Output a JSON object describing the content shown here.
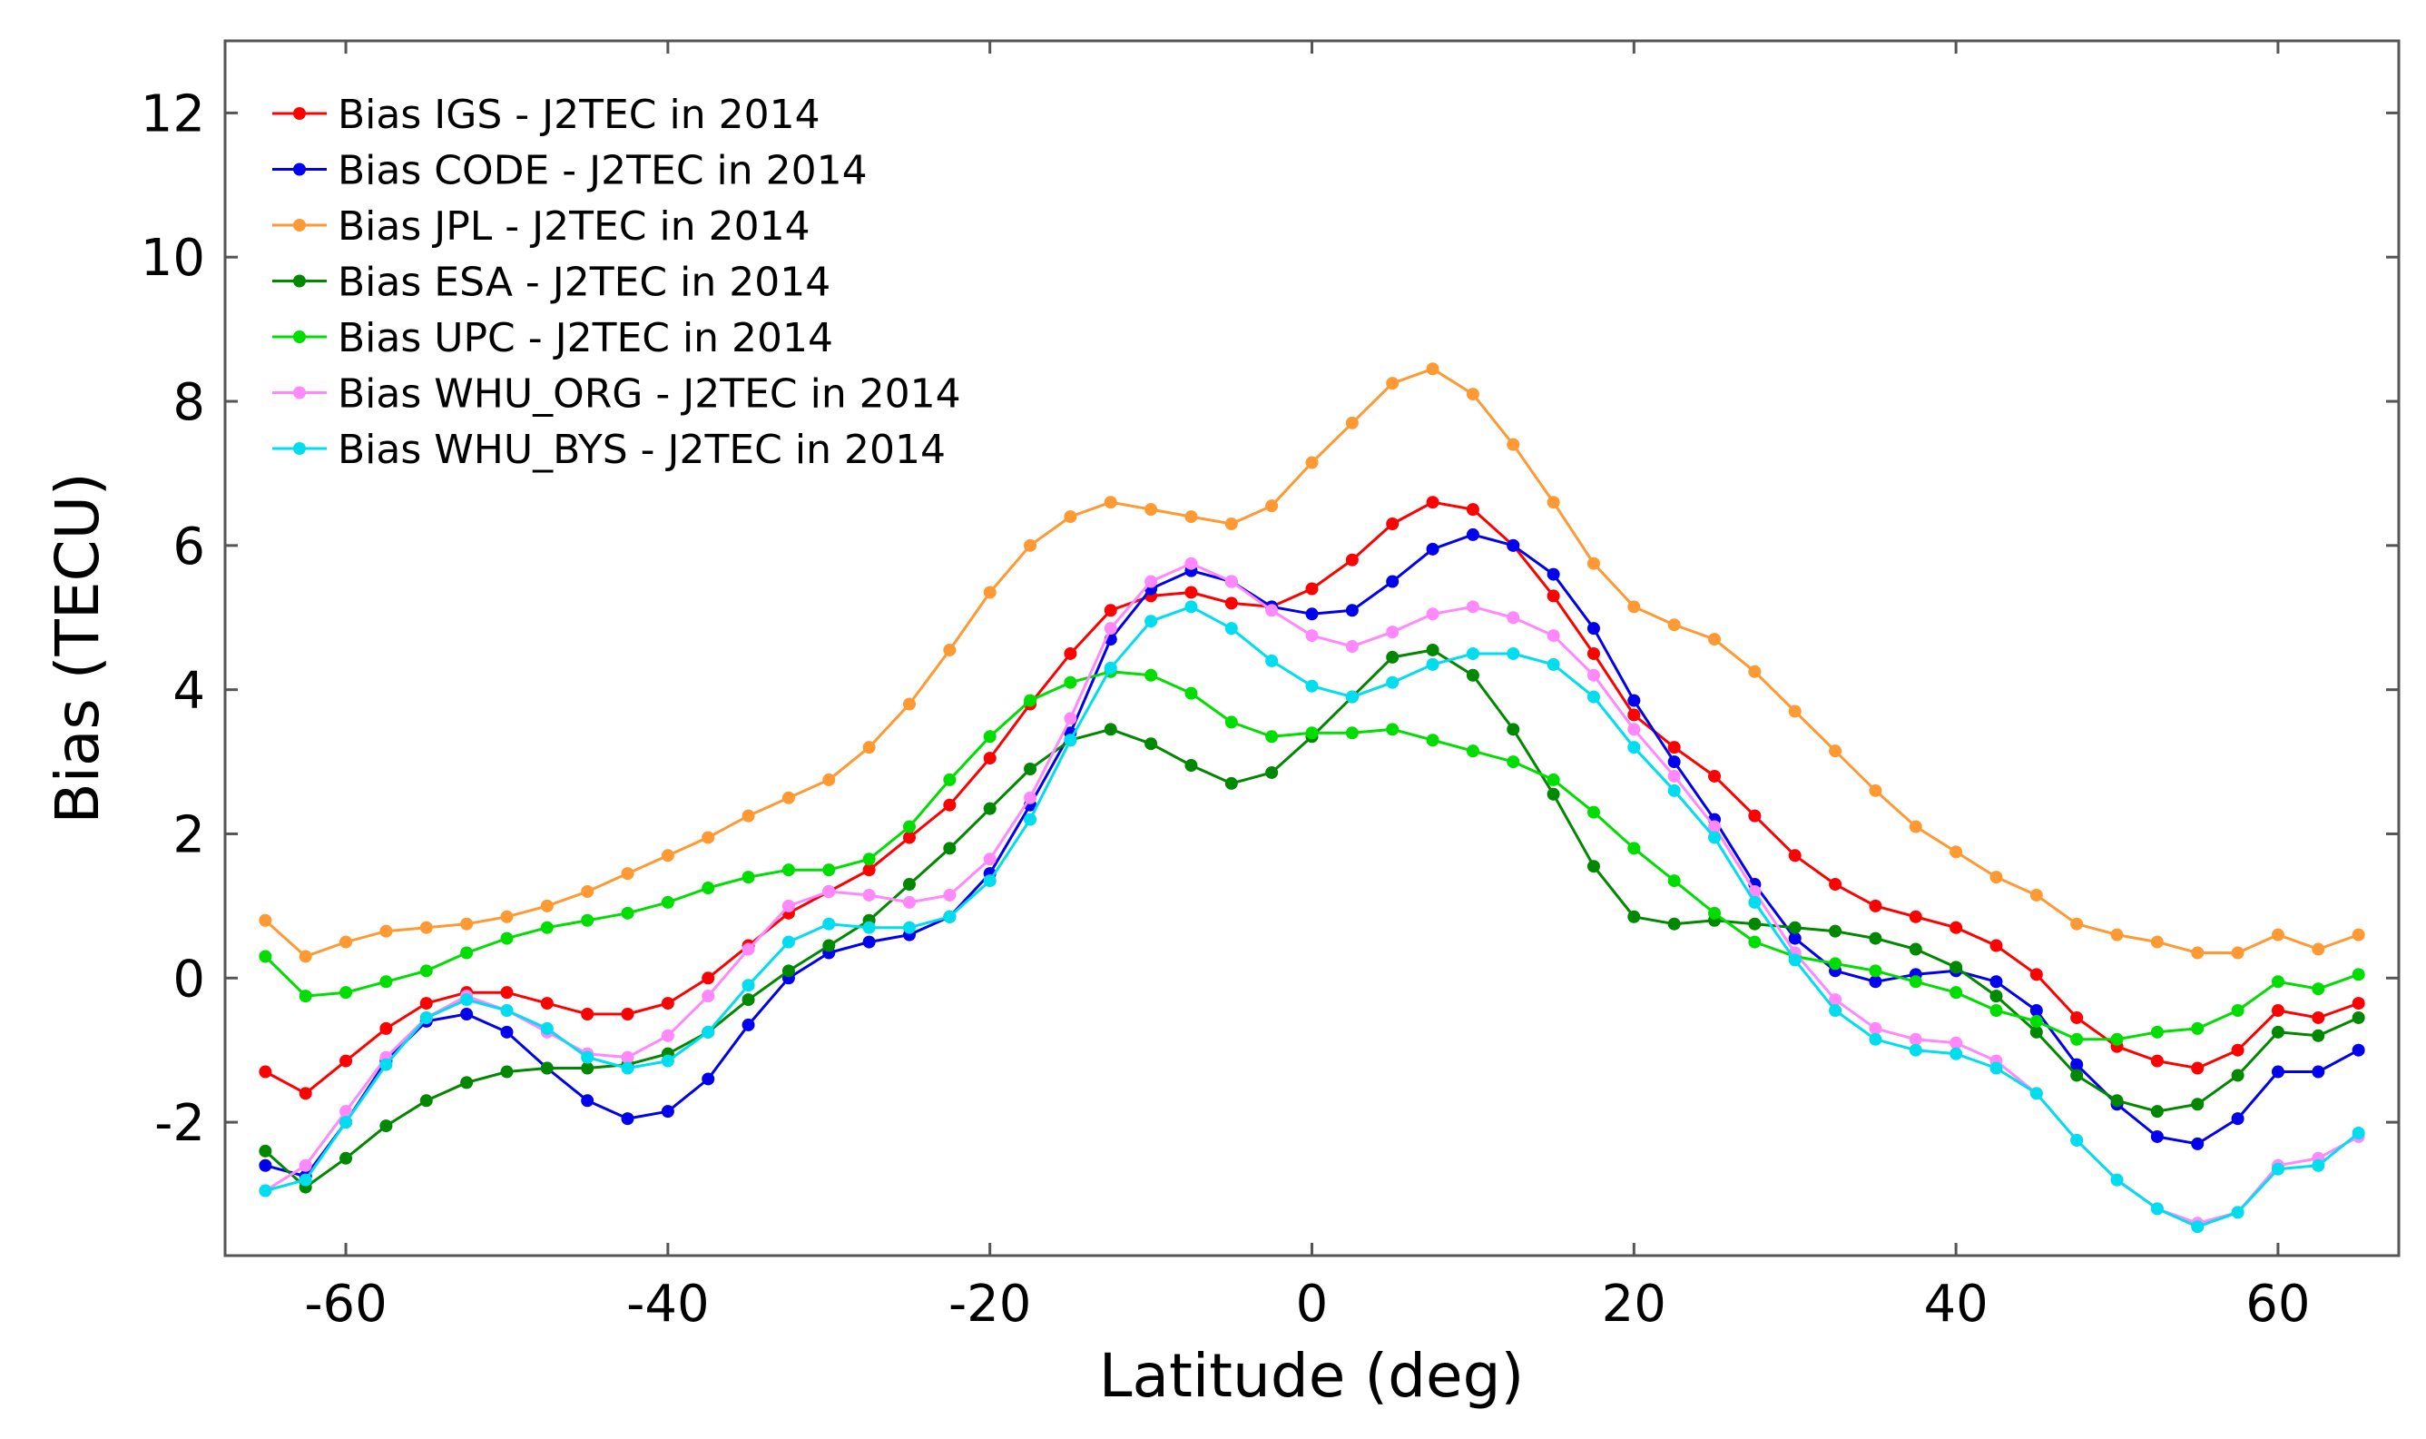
{
  "chart_data": {
    "type": "line",
    "title": "",
    "xlabel": "Latitude (deg)",
    "ylabel": "Bias (TECU)",
    "xlim": [
      -67.5,
      67.5
    ],
    "ylim": [
      -3.85,
      13
    ],
    "xticks": [
      -60,
      -40,
      -20,
      0,
      20,
      40,
      60
    ],
    "yticks": [
      12,
      10,
      8,
      6,
      4,
      2,
      0,
      -2
    ],
    "xtick_labels": [
      "-60",
      "-40",
      "-20",
      "0",
      "20",
      "40",
      "60"
    ],
    "ytick_labels": [
      "12",
      "10",
      "8",
      "6",
      "4",
      "2",
      "0",
      "-2"
    ],
    "grid": false,
    "legend_position": "top-left",
    "x": [
      -65,
      -62.5,
      -60,
      -57.5,
      -55,
      -52.5,
      -50,
      -47.5,
      -45,
      -42.5,
      -40,
      -37.5,
      -35,
      -32.5,
      -30,
      -27.5,
      -25,
      -22.5,
      -20,
      -17.5,
      -15,
      -12.5,
      -10,
      -7.5,
      -5,
      -2.5,
      0,
      2.5,
      5,
      7.5,
      10,
      12.5,
      15,
      17.5,
      20,
      22.5,
      25,
      27.5,
      30,
      32.5,
      35,
      37.5,
      40,
      42.5,
      45,
      47.5,
      50,
      52.5,
      55,
      57.5,
      60,
      62.5,
      65
    ],
    "series": [
      {
        "name": "Bias IGS - J2TEC in 2014",
        "color": "#ff0000",
        "values": [
          -1.3,
          -1.6,
          -1.15,
          -0.7,
          -0.35,
          -0.2,
          -0.2,
          -0.35,
          -0.5,
          -0.5,
          -0.35,
          0,
          0.45,
          0.9,
          1.2,
          1.5,
          1.95,
          2.4,
          3.05,
          3.8,
          4.5,
          5.1,
          5.3,
          5.35,
          5.2,
          5.15,
          5.4,
          5.8,
          6.3,
          6.6,
          6.5,
          6.0,
          5.3,
          4.5,
          3.65,
          3.2,
          2.8,
          2.25,
          1.7,
          1.3,
          1.0,
          0.85,
          0.7,
          0.45,
          0.05,
          -0.55,
          -0.95,
          -1.15,
          -1.25,
          -1.0,
          -0.45,
          -0.55,
          -0.35
        ]
      },
      {
        "name": "Bias CODE - J2TEC in 2014",
        "color": "#0000ee",
        "values": [
          -2.6,
          -2.75,
          -2.0,
          -1.15,
          -0.6,
          -0.5,
          -0.75,
          -1.25,
          -1.7,
          -1.95,
          -1.85,
          -1.4,
          -0.65,
          0.0,
          0.35,
          0.5,
          0.6,
          0.85,
          1.45,
          2.4,
          3.4,
          4.7,
          5.4,
          5.65,
          5.5,
          5.15,
          5.05,
          5.1,
          5.5,
          5.95,
          6.15,
          6.0,
          5.6,
          4.85,
          3.85,
          3.0,
          2.2,
          1.3,
          0.55,
          0.1,
          -0.05,
          0.05,
          0.1,
          -0.05,
          -0.45,
          -1.2,
          -1.75,
          -2.2,
          -2.3,
          -1.95,
          -1.3,
          -1.3,
          -1.0
        ]
      },
      {
        "name": "Bias JPL - J2TEC in 2014",
        "color": "#ff9933",
        "values": [
          0.8,
          0.3,
          0.5,
          0.65,
          0.7,
          0.75,
          0.85,
          1.0,
          1.2,
          1.45,
          1.7,
          1.95,
          2.25,
          2.5,
          2.75,
          3.2,
          3.8,
          4.55,
          5.35,
          6.0,
          6.4,
          6.6,
          6.5,
          6.4,
          6.3,
          6.55,
          7.15,
          7.7,
          8.25,
          8.45,
          8.1,
          7.4,
          6.6,
          5.75,
          5.15,
          4.9,
          4.7,
          4.25,
          3.7,
          3.15,
          2.6,
          2.1,
          1.75,
          1.4,
          1.15,
          0.75,
          0.6,
          0.5,
          0.35,
          0.35,
          0.6,
          0.4,
          0.6
        ]
      },
      {
        "name": "Bias ESA - J2TEC in 2014",
        "color": "#008800",
        "values": [
          -2.4,
          -2.9,
          -2.5,
          -2.05,
          -1.7,
          -1.45,
          -1.3,
          -1.25,
          -1.25,
          -1.2,
          -1.05,
          -0.75,
          -0.3,
          0.1,
          0.45,
          0.8,
          1.3,
          1.8,
          2.35,
          2.9,
          3.3,
          3.45,
          3.25,
          2.95,
          2.7,
          2.85,
          3.35,
          3.9,
          4.45,
          4.55,
          4.2,
          3.45,
          2.55,
          1.55,
          0.85,
          0.75,
          0.8,
          0.75,
          0.7,
          0.65,
          0.55,
          0.4,
          0.15,
          -0.25,
          -0.75,
          -1.35,
          -1.7,
          -1.85,
          -1.75,
          -1.35,
          -0.75,
          -0.8,
          -0.55
        ]
      },
      {
        "name": "Bias UPC - J2TEC in 2014",
        "color": "#00dd00",
        "values": [
          0.3,
          -0.25,
          -0.2,
          -0.05,
          0.1,
          0.35,
          0.55,
          0.7,
          0.8,
          0.9,
          1.05,
          1.25,
          1.4,
          1.5,
          1.5,
          1.65,
          2.1,
          2.75,
          3.35,
          3.85,
          4.1,
          4.25,
          4.2,
          3.95,
          3.55,
          3.35,
          3.4,
          3.4,
          3.45,
          3.3,
          3.15,
          3.0,
          2.75,
          2.3,
          1.8,
          1.35,
          0.9,
          0.5,
          0.3,
          0.2,
          0.1,
          -0.05,
          -0.2,
          -0.45,
          -0.6,
          -0.85,
          -0.85,
          -0.75,
          -0.7,
          -0.45,
          -0.05,
          -0.15,
          0.05
        ]
      },
      {
        "name": "Bias WHU_ORG - J2TEC in 2014",
        "color": "#ff88ff",
        "values": [
          -2.95,
          -2.6,
          -1.85,
          -1.1,
          -0.55,
          -0.25,
          -0.45,
          -0.75,
          -1.05,
          -1.1,
          -0.8,
          -0.25,
          0.4,
          1.0,
          1.2,
          1.15,
          1.05,
          1.15,
          1.65,
          2.5,
          3.6,
          4.85,
          5.5,
          5.75,
          5.5,
          5.1,
          4.75,
          4.6,
          4.8,
          5.05,
          5.15,
          5.0,
          4.75,
          4.2,
          3.45,
          2.8,
          2.1,
          1.2,
          0.35,
          -0.3,
          -0.7,
          -0.85,
          -0.9,
          -1.15,
          -1.6,
          -2.25,
          -2.8,
          -3.2,
          -3.4,
          -3.25,
          -2.6,
          -2.5,
          -2.2
        ]
      },
      {
        "name": "Bias WHU_BYS - J2TEC in 2014",
        "color": "#00ddee",
        "values": [
          -2.95,
          -2.8,
          -2.0,
          -1.2,
          -0.55,
          -0.3,
          -0.45,
          -0.7,
          -1.1,
          -1.25,
          -1.15,
          -0.75,
          -0.1,
          0.5,
          0.75,
          0.7,
          0.7,
          0.85,
          1.35,
          2.2,
          3.3,
          4.3,
          4.95,
          5.15,
          4.85,
          4.4,
          4.05,
          3.9,
          4.1,
          4.35,
          4.5,
          4.5,
          4.35,
          3.9,
          3.2,
          2.6,
          1.95,
          1.05,
          0.25,
          -0.45,
          -0.85,
          -1.0,
          -1.05,
          -1.25,
          -1.6,
          -2.25,
          -2.8,
          -3.2,
          -3.45,
          -3.25,
          -2.65,
          -2.6,
          -2.15
        ]
      }
    ]
  }
}
